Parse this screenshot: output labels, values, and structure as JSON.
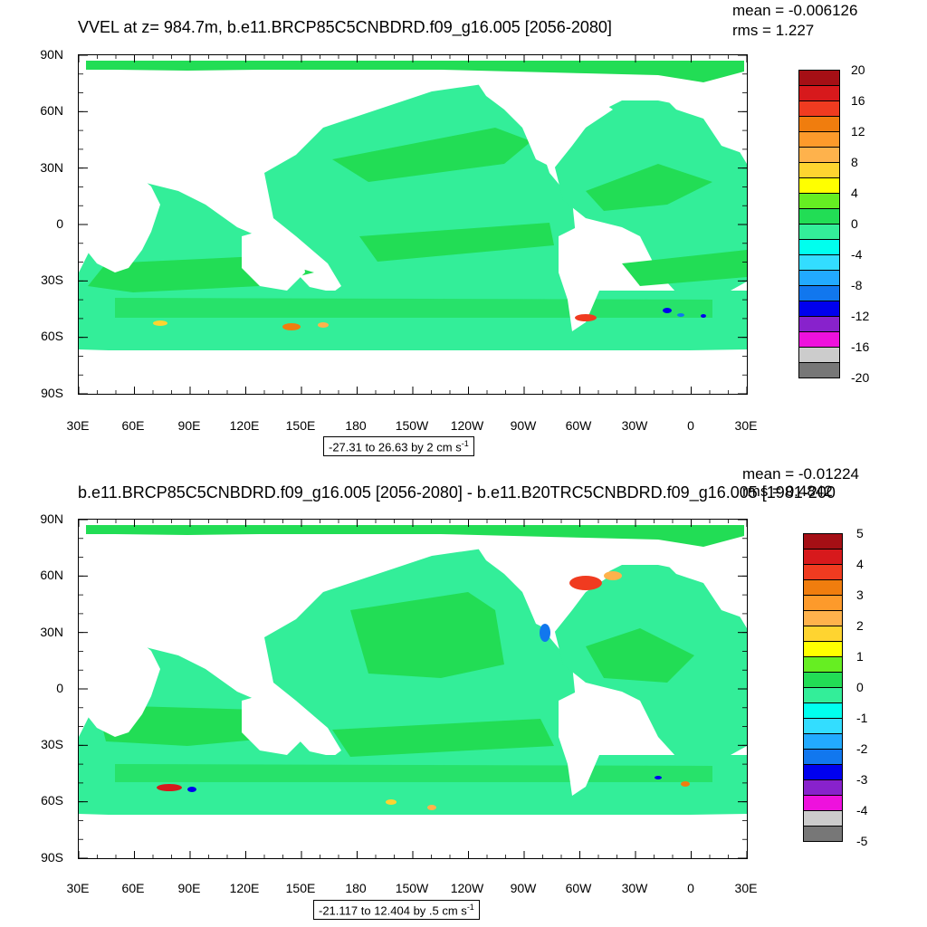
{
  "chart_data": [
    {
      "type": "heatmap",
      "title": "VVEL at z= 984.7m, b.e11.BRCP85C5CNBDRD.f09_g16.005 [2056-2080]",
      "stats": {
        "mean": "mean = -0.006126",
        "rms": "rms = 1.227"
      },
      "ytick_labels": [
        "90N",
        "60N",
        "30N",
        "0",
        "30S",
        "60S",
        "90S"
      ],
      "xtick_labels": [
        "30E",
        "60E",
        "90E",
        "120E",
        "150E",
        "180",
        "150W",
        "120W",
        "90W",
        "60W",
        "30W",
        "0",
        "30E"
      ],
      "colorbar": {
        "labels": [
          "20",
          "16",
          "12",
          "8",
          "4",
          "0",
          "-4",
          "-8",
          "-12",
          "-16",
          "-20"
        ],
        "colors": [
          "#a50f15",
          "#d7191c",
          "#f03b20",
          "#f07d0e",
          "#fd9a2b",
          "#feb24c",
          "#fed430",
          "#ffff00",
          "#66ee22",
          "#22dd55",
          "#33ee99",
          "#00ffee",
          "#33ddff",
          "#22aaff",
          "#1177ee",
          "#0000ee",
          "#8822cc",
          "#ee11dd",
          "#cccccc",
          "#777777"
        ]
      },
      "range_text": "-27.31 to 26.63 by 2 cm s",
      "range_unit_exp": "-1"
    },
    {
      "type": "heatmap",
      "title": "b.e11.BRCP85C5CNBDRD.f09_g16.005 [2056-2080] - b.e11.B20TRC5CNBDRD.f09_g16.005 [1981-200",
      "stats": {
        "mean": "mean = -0.01224",
        "rms": "rms = 0.4842"
      },
      "ytick_labels": [
        "90N",
        "60N",
        "30N",
        "0",
        "30S",
        "60S",
        "90S"
      ],
      "xtick_labels": [
        "30E",
        "60E",
        "90E",
        "120E",
        "150E",
        "180",
        "150W",
        "120W",
        "90W",
        "60W",
        "30W",
        "0",
        "30E"
      ],
      "colorbar": {
        "labels": [
          "5",
          "4",
          "3",
          "2",
          "1",
          "0",
          "-1",
          "-2",
          "-3",
          "-4",
          "-5"
        ],
        "colors": [
          "#a50f15",
          "#d7191c",
          "#f03b20",
          "#f07d0e",
          "#fd9a2b",
          "#feb24c",
          "#fed430",
          "#ffff00",
          "#66ee22",
          "#22dd55",
          "#33ee99",
          "#00ffee",
          "#33ddff",
          "#22aaff",
          "#1177ee",
          "#0000ee",
          "#8822cc",
          "#ee11dd",
          "#cccccc",
          "#777777"
        ]
      },
      "range_text": "-21.117 to 12.404 by .5 cm s",
      "range_unit_exp": "-1"
    }
  ]
}
